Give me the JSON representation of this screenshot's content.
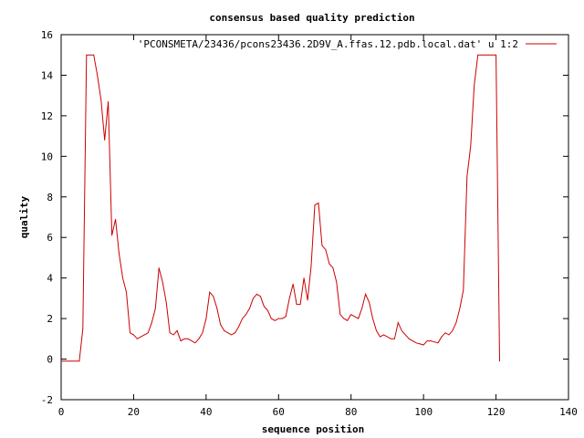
{
  "chart_data": {
    "type": "line",
    "title": "consensus based quality prediction",
    "xlabel": "sequence position",
    "ylabel": "quality",
    "xlim": [
      0,
      140
    ],
    "ylim": [
      -2,
      16
    ],
    "xticks": [
      "0",
      "20",
      "40",
      "60",
      "80",
      "100",
      "120",
      "140"
    ],
    "yticks": [
      "-2",
      "0",
      "2",
      "4",
      "6",
      "8",
      "10",
      "12",
      "14",
      "16"
    ],
    "grid": false,
    "legend_position": "top-right",
    "series": [
      {
        "name": "'PCONSMETA/23436/pcons23436.2D9V_A.ffas.12.pdb.local.dat' u 1:2",
        "color": "#cc0000",
        "x": [
          0,
          1,
          2,
          3,
          4,
          5,
          6,
          7,
          8,
          9,
          10,
          11,
          12,
          13,
          14,
          15,
          16,
          17,
          18,
          19,
          20,
          21,
          22,
          23,
          24,
          25,
          26,
          27,
          28,
          29,
          30,
          31,
          32,
          33,
          34,
          35,
          36,
          37,
          38,
          39,
          40,
          41,
          42,
          43,
          44,
          45,
          46,
          47,
          48,
          49,
          50,
          51,
          52,
          53,
          54,
          55,
          56,
          57,
          58,
          59,
          60,
          61,
          62,
          63,
          64,
          65,
          66,
          67,
          68,
          69,
          70,
          71,
          72,
          73,
          74,
          75,
          76,
          77,
          78,
          79,
          80,
          81,
          82,
          83,
          84,
          85,
          86,
          87,
          88,
          89,
          90,
          91,
          92,
          93,
          94,
          95,
          96,
          97,
          98,
          99,
          100,
          101,
          102,
          103,
          104,
          105,
          106,
          107,
          108,
          109,
          110,
          111,
          112,
          113,
          114,
          115,
          116,
          117,
          118,
          119,
          120,
          121
        ],
        "values": [
          -0.1,
          -0.1,
          -0.1,
          -0.1,
          -0.1,
          -0.1,
          1.5,
          15,
          15,
          15,
          14,
          12.8,
          10.8,
          12.7,
          6.1,
          6.9,
          5.2,
          4,
          3.3,
          1.3,
          1.2,
          1,
          1.1,
          1.2,
          1.3,
          1.8,
          2.5,
          4.5,
          3.8,
          2.8,
          1.3,
          1.2,
          1.4,
          0.9,
          1.0,
          1.0,
          0.9,
          0.8,
          1.0,
          1.3,
          2.0,
          3.3,
          3.1,
          2.5,
          1.7,
          1.4,
          1.3,
          1.2,
          1.3,
          1.6,
          2.0,
          2.2,
          2.5,
          3.0,
          3.2,
          3.1,
          2.6,
          2.4,
          2.0,
          1.9,
          2.0,
          2.0,
          2.1,
          3.0,
          3.7,
          2.7,
          2.7,
          4.0,
          2.9,
          4.6,
          7.6,
          7.7,
          5.6,
          5.4,
          4.7,
          4.5,
          3.8,
          2.2,
          2.0,
          1.9,
          2.2,
          2.1,
          2.0,
          2.5,
          3.2,
          2.8,
          2.0,
          1.4,
          1.1,
          1.2,
          1.1,
          1.0,
          1.0,
          1.8,
          1.4,
          1.2,
          1.0,
          0.9,
          0.8,
          0.75,
          0.7,
          0.9,
          0.9,
          0.85,
          0.8,
          1.1,
          1.3,
          1.2,
          1.4,
          1.8,
          2.5,
          3.4,
          9.0,
          10.5,
          13.5,
          15,
          15,
          15,
          15,
          15,
          15,
          -0.1
        ]
      }
    ]
  }
}
